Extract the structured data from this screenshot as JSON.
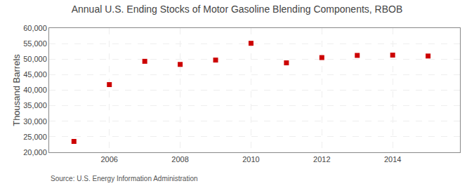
{
  "chart_data": {
    "type": "scatter",
    "title": "Annual U.S. Ending Stocks of Motor Gasoline Blending Components, RBOB",
    "ylabel": "Thousand Barrels",
    "annotations": [
      "Source: U.S. Energy Information Administration"
    ],
    "x": [
      2005,
      2006,
      2007,
      2008,
      2009,
      2010,
      2011,
      2012,
      2013,
      2014,
      2015
    ],
    "values": [
      23500,
      41800,
      49300,
      48300,
      49700,
      55100,
      48800,
      50500,
      51200,
      51300,
      51000
    ],
    "color": "#CC0000",
    "marker": "square",
    "xlim": [
      2004.3,
      2015.9
    ],
    "xticks": [
      2006,
      2008,
      2010,
      2012,
      2014
    ],
    "ylim": [
      20000,
      60000
    ],
    "yticks": [
      {
        "value": 20000,
        "label": "20,000"
      },
      {
        "value": 25000,
        "label": "25,000"
      },
      {
        "value": 30000,
        "label": "30,000"
      },
      {
        "value": 35000,
        "label": "35,000"
      },
      {
        "value": 40000,
        "label": "40,000"
      },
      {
        "value": 45000,
        "label": "45,000"
      },
      {
        "value": 50000,
        "label": "50,000"
      },
      {
        "value": 55000,
        "label": "55,000"
      },
      {
        "value": 60000,
        "label": "60,000"
      }
    ],
    "grid": true
  }
}
